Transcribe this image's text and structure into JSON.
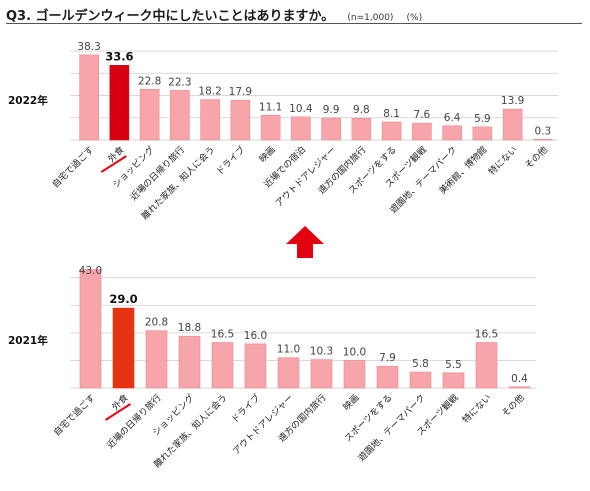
{
  "header": {
    "title": "Q3. ゴールデンウィーク中にしたいことはありますか。",
    "note": "(n=1,000)",
    "unit": "(%)"
  },
  "colors": {
    "bar": "#f7a5ab",
    "bar_border": "#e9878f",
    "highlight_2022": "#d7000f",
    "highlight_2021": "#e63312",
    "arrow": "#e00010",
    "underline": "#e60012"
  },
  "chart_data": [
    {
      "type": "bar",
      "year_label": "2022年",
      "categories": [
        "自宅で過ごす",
        "外食",
        "ショッピング",
        "近場の日帰り旅行",
        "離れた家族、知人に会う",
        "ドライブ",
        "映画",
        "近場での宿泊",
        "アウトドアレジャー",
        "遠方の国内旅行",
        "スポーツをする",
        "スポーツ観戦",
        "遊園地、テーマパーク",
        "美術館、博物館",
        "特にない",
        "その他"
      ],
      "values": [
        38.3,
        33.6,
        22.8,
        22.3,
        18.2,
        17.9,
        11.1,
        10.4,
        9.9,
        9.8,
        8.1,
        7.6,
        6.4,
        5.9,
        13.9,
        0.3
      ],
      "value_labels": [
        "38.3",
        "33.6",
        "22.8",
        "22.3",
        "18.2",
        "17.9",
        "11.1",
        "10.4",
        "9.9",
        "9.8",
        "8.1",
        "7.6",
        "6.4",
        "5.9",
        "13.9",
        "0.3"
      ],
      "highlight_index": 1,
      "ylim": [
        0,
        45
      ],
      "grid": true
    },
    {
      "type": "bar",
      "year_label": "2021年",
      "categories": [
        "自宅で過ごす",
        "外食",
        "近場の日帰り旅行",
        "ショッピング",
        "離れた家族、知人に会う",
        "ドライブ",
        "アウトドアレジャー",
        "遠方の国内旅行",
        "映画",
        "スポーツをする",
        "遊園地、テーマパーク",
        "スポーツ観戦",
        "特にない",
        "その他"
      ],
      "values": [
        43.0,
        29.0,
        20.8,
        18.8,
        16.5,
        16.0,
        11.0,
        10.3,
        10.0,
        7.9,
        5.8,
        5.5,
        16.5,
        0.4
      ],
      "value_labels": [
        "43.0",
        "29.0",
        "20.8",
        "18.8",
        "16.5",
        "16.0",
        "11.0",
        "10.3",
        "10.0",
        "7.9",
        "5.8",
        "5.5",
        "16.5",
        "0.4"
      ],
      "highlight_index": 1,
      "ylim": [
        0,
        45
      ],
      "grid": true
    }
  ]
}
